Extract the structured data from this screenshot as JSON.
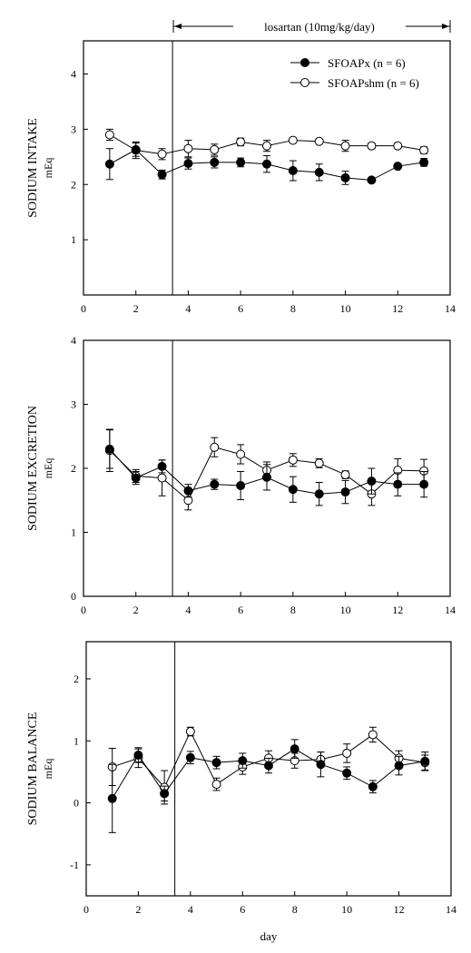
{
  "annotation": {
    "text": "losartan (10mg/kg/day)",
    "x_start": 3.4,
    "x_end": 14
  },
  "legend": {
    "placement": "top-right of first panel",
    "entries": [
      "SFOAPx (n = 6)",
      "SFOAPshm (n = 6)"
    ]
  },
  "colors": {
    "filled_marker": "#000000",
    "open_marker": "#ffffff",
    "axis": "#000000"
  },
  "chart_data": [
    {
      "type": "line",
      "ylabel_main": "SODIUM INTAKE",
      "ylabel_unit": "mEq",
      "xlabel": "",
      "xlim": [
        0,
        14
      ],
      "ylim": [
        0,
        4.6
      ],
      "xticks": [
        0,
        2,
        4,
        6,
        8,
        10,
        12,
        14
      ],
      "yticks": [
        1,
        2,
        3,
        4
      ],
      "vline_x": 3.4,
      "x": [
        1,
        2,
        3,
        4,
        5,
        6,
        7,
        8,
        9,
        10,
        11,
        12,
        13
      ],
      "series": [
        {
          "name": "SFOAPx (n = 6)",
          "marker": "filled-circle",
          "values": [
            2.37,
            2.63,
            2.18,
            2.38,
            2.4,
            2.4,
            2.37,
            2.25,
            2.22,
            2.12,
            2.08,
            2.33,
            2.4
          ],
          "errors": [
            0.28,
            0.12,
            0.08,
            0.1,
            0.1,
            0.08,
            0.15,
            0.18,
            0.15,
            0.12,
            0.04,
            0.04,
            0.07
          ]
        },
        {
          "name": "SFOAPshm (n = 6)",
          "marker": "open-circle",
          "values": [
            2.9,
            2.62,
            2.55,
            2.65,
            2.63,
            2.77,
            2.7,
            2.8,
            2.78,
            2.7,
            2.7,
            2.7,
            2.62
          ],
          "errors": [
            0.1,
            0.15,
            0.1,
            0.15,
            0.1,
            0.07,
            0.1,
            0.04,
            0.04,
            0.1,
            0.05,
            0.04,
            0.06
          ]
        }
      ]
    },
    {
      "type": "line",
      "ylabel_main": "SODIUM EXCRETION",
      "ylabel_unit": "mEq",
      "xlabel": "",
      "xlim": [
        0,
        14
      ],
      "ylim": [
        0,
        4
      ],
      "xticks": [
        0,
        2,
        4,
        6,
        8,
        10,
        12,
        14
      ],
      "yticks": [
        0,
        1,
        2,
        3,
        4
      ],
      "vline_x": 3.4,
      "x": [
        1,
        2,
        3,
        4,
        5,
        6,
        7,
        8,
        9,
        10,
        11,
        12,
        13
      ],
      "series": [
        {
          "name": "SFOAPx (n = 6)",
          "marker": "filled-circle",
          "values": [
            2.3,
            1.85,
            2.03,
            1.65,
            1.75,
            1.73,
            1.86,
            1.67,
            1.6,
            1.63,
            1.8,
            1.75,
            1.75
          ],
          "errors": [
            0.3,
            0.1,
            0.1,
            0.1,
            0.08,
            0.22,
            0.2,
            0.2,
            0.18,
            0.18,
            0.2,
            0.18,
            0.2
          ]
        },
        {
          "name": "SFOAPshm (n = 6)",
          "marker": "open-circle",
          "values": [
            2.28,
            1.88,
            1.85,
            1.5,
            2.33,
            2.22,
            1.97,
            2.13,
            2.08,
            1.9,
            1.6,
            1.97,
            1.96
          ],
          "errors": [
            0.33,
            0.1,
            0.28,
            0.15,
            0.15,
            0.15,
            0.13,
            0.1,
            0.07,
            0.06,
            0.18,
            0.18,
            0.18
          ]
        }
      ]
    },
    {
      "type": "line",
      "ylabel_main": "SODIUM BALANCE",
      "ylabel_unit": "mEq",
      "xlabel": "day",
      "xlim": [
        0,
        14
      ],
      "ylim": [
        -1.5,
        2.6
      ],
      "xticks": [
        0,
        2,
        4,
        6,
        8,
        10,
        12,
        14
      ],
      "yticks": [
        -1,
        0,
        1,
        2
      ],
      "vline_x": 3.4,
      "x": [
        1,
        2,
        3,
        4,
        5,
        6,
        7,
        8,
        9,
        10,
        11,
        12,
        13
      ],
      "series": [
        {
          "name": "SFOAPx (n = 6)",
          "marker": "filled-circle",
          "values": [
            0.07,
            0.77,
            0.15,
            0.73,
            0.65,
            0.68,
            0.6,
            0.87,
            0.62,
            0.48,
            0.26,
            0.6,
            0.67
          ],
          "errors": [
            0.55,
            0.12,
            0.12,
            0.1,
            0.1,
            0.12,
            0.12,
            0.15,
            0.2,
            0.1,
            0.1,
            0.15,
            0.15
          ]
        },
        {
          "name": "SFOAPshm (n = 6)",
          "marker": "open-circle",
          "values": [
            0.58,
            0.72,
            0.25,
            1.15,
            0.3,
            0.58,
            0.72,
            0.68,
            0.7,
            0.8,
            1.1,
            0.72,
            0.65
          ],
          "errors": [
            0.3,
            0.15,
            0.27,
            0.07,
            0.1,
            0.12,
            0.12,
            0.12,
            0.12,
            0.15,
            0.12,
            0.12,
            0.12
          ]
        }
      ]
    }
  ]
}
